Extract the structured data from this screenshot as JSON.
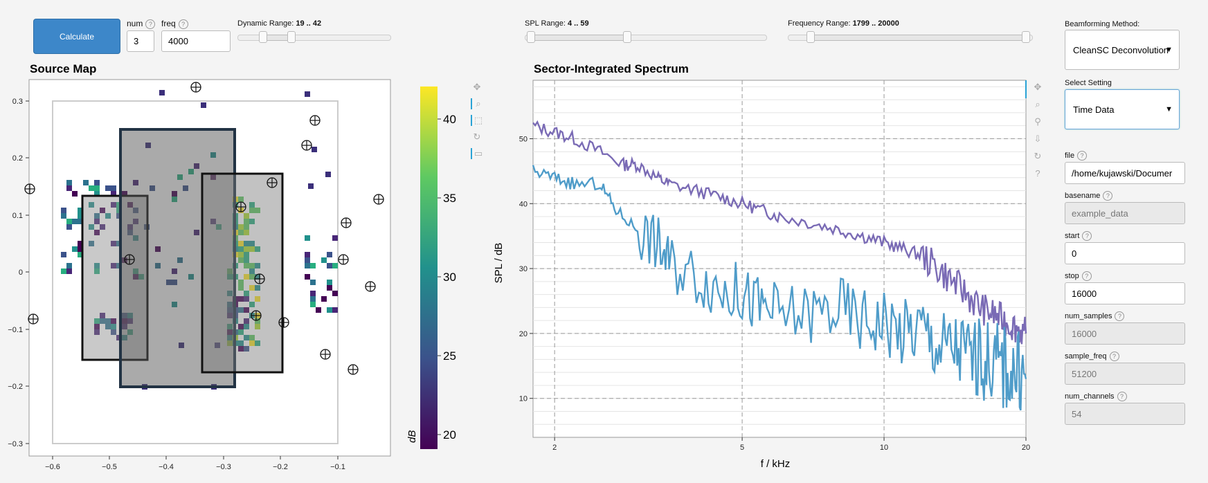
{
  "controls": {
    "calculate_label": "Calculate",
    "num_label": "num",
    "num_value": "3",
    "freq_label": "freq",
    "freq_value": "4000",
    "dynamic_range": {
      "label": "Dynamic Range:",
      "value": "19 .. 42"
    },
    "spl_range": {
      "label": "SPL Range:",
      "value": "4 .. 59"
    },
    "frequency_range": {
      "label": "Frequency Range:",
      "value": "1799 .. 20000"
    }
  },
  "source_map": {
    "title": "Source Map",
    "x_ticks": [
      "−0.6",
      "−0.5",
      "−0.4",
      "−0.3",
      "−0.2",
      "−0.1"
    ],
    "y_ticks": [
      "0.3",
      "0.2",
      "0.1",
      "0",
      "−0.1",
      "−0.2",
      "−0.3"
    ],
    "colorbar_ticks": [
      "40",
      "35",
      "30",
      "25",
      "20"
    ],
    "colorbar_label": "dB"
  },
  "spectrum": {
    "title": "Sector-Integrated Spectrum",
    "xlabel": "f / kHz",
    "ylabel": "SPL / dB"
  },
  "chart_data": {
    "type": "line",
    "title": "Sector-Integrated Spectrum",
    "xlabel": "f / kHz",
    "ylabel": "SPL / dB",
    "x_scale": "log",
    "xlim": [
      1.8,
      20
    ],
    "ylim": [
      4,
      59
    ],
    "x_ticks": [
      "2",
      "5",
      "10",
      "20"
    ],
    "y_ticks": [
      "10",
      "20",
      "30",
      "40",
      "50"
    ],
    "series": [
      {
        "color": "#7a6bb5",
        "x": [
          1.8,
          2.0,
          2.2,
          2.5,
          2.8,
          3.0,
          3.3,
          3.5,
          4.0,
          4.5,
          5.0,
          5.5,
          6.0,
          7.0,
          8.0,
          9.0,
          10.0,
          11.0,
          12.0,
          13.0,
          14.0,
          15.0,
          16.0,
          17.0,
          18.0,
          19.0,
          20.0
        ],
        "y": [
          52,
          51,
          50,
          48,
          46,
          46,
          44,
          43,
          42,
          41,
          40,
          39,
          38,
          37,
          36,
          35,
          34,
          33,
          32,
          30,
          28,
          26,
          24,
          23,
          22,
          21,
          20
        ]
      },
      {
        "color": "#4f9cc9",
        "x": [
          1.8,
          2.0,
          2.2,
          2.5,
          2.7,
          3.0,
          3.3,
          3.5,
          4.0,
          4.5,
          5.0,
          5.5,
          6.0,
          7.0,
          8.0,
          9.0,
          10.0,
          11.0,
          12.0,
          13.0,
          14.0,
          15.0,
          16.0,
          17.0,
          18.0,
          19.0,
          20.0
        ],
        "y": [
          45,
          44,
          43,
          43,
          39,
          36,
          34,
          31,
          29,
          27,
          26,
          24,
          23,
          23,
          24,
          22,
          22,
          20,
          21,
          18,
          18,
          17,
          16,
          16,
          15,
          14,
          13
        ]
      }
    ]
  },
  "sidebar": {
    "method_label": "Beamforming Method:",
    "method_value": "CleanSC Deconvolution",
    "setting_label": "Select Setting",
    "setting_value": "Time Data",
    "fields": [
      {
        "label": "file",
        "value": "/home/kujawski/Documer",
        "disabled": false
      },
      {
        "label": "basename",
        "value": "example_data",
        "disabled": true
      },
      {
        "label": "start",
        "value": "0",
        "disabled": false
      },
      {
        "label": "stop",
        "value": "16000",
        "disabled": false
      },
      {
        "label": "num_samples",
        "value": "16000",
        "disabled": true
      },
      {
        "label": "sample_freq",
        "value": "51200",
        "disabled": true
      },
      {
        "label": "num_channels",
        "value": "54",
        "disabled": true
      }
    ]
  },
  "icons": {
    "help": "?",
    "caret": "▼",
    "toolbar": [
      "move-icon",
      "zoom-icon",
      "box-select-icon",
      "reset-icon",
      "hover-icon",
      "wheel-zoom-icon",
      "save-icon",
      "help-icon"
    ]
  }
}
